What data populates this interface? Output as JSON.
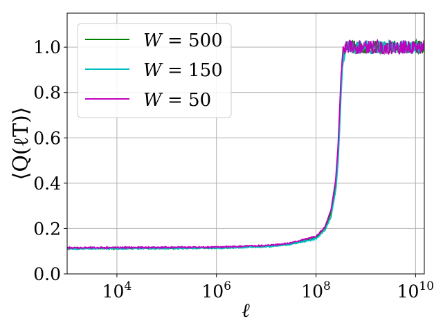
{
  "chart_data": {
    "type": "line",
    "xlabel": "ℓ",
    "ylabel": "⟨Q(ℓT)⟩",
    "xscale": "log",
    "xlim": [
      1000,
      15000000000
    ],
    "ylim": [
      0.0,
      1.15
    ],
    "x_ticks": [
      {
        "exp": 4,
        "base": "10",
        "sup": "4"
      },
      {
        "exp": 6,
        "base": "10",
        "sup": "6"
      },
      {
        "exp": 8,
        "base": "10",
        "sup": "8"
      },
      {
        "exp": 10,
        "base": "10",
        "sup": "10"
      }
    ],
    "y_ticks": [
      {
        "value": 0.0,
        "label": "0.0"
      },
      {
        "value": 0.2,
        "label": "0.2"
      },
      {
        "value": 0.4,
        "label": "0.4"
      },
      {
        "value": 0.6,
        "label": "0.6"
      },
      {
        "value": 0.8,
        "label": "0.8"
      },
      {
        "value": 1.0,
        "label": "1.0"
      }
    ],
    "grid": true,
    "legend_position": "top-left",
    "series": [
      {
        "name": "W = 500",
        "symbol": "W",
        "eq": " = 500",
        "color": "#008000",
        "x": [
          1000,
          10000,
          100000,
          1000000,
          10000000,
          30000000,
          100000000,
          150000000,
          200000000,
          250000000,
          280000000,
          300000000,
          320000000,
          350000000,
          400000000,
          1000000000,
          10000000000,
          15000000000
        ],
        "y": [
          0.112,
          0.113,
          0.114,
          0.115,
          0.122,
          0.132,
          0.16,
          0.2,
          0.27,
          0.4,
          0.55,
          0.7,
          0.85,
          0.97,
          1.0,
          1.0,
          1.0,
          1.0
        ]
      },
      {
        "name": "W = 150",
        "symbol": "W",
        "eq": " = 150",
        "color": "#00bfbf",
        "x": [
          1000,
          10000,
          100000,
          1000000,
          10000000,
          30000000,
          100000000,
          150000000,
          200000000,
          250000000,
          280000000,
          300000000,
          320000000,
          350000000,
          400000000,
          1000000000,
          10000000000,
          15000000000
        ],
        "y": [
          0.111,
          0.112,
          0.113,
          0.114,
          0.12,
          0.13,
          0.155,
          0.19,
          0.25,
          0.37,
          0.5,
          0.65,
          0.8,
          0.95,
          1.0,
          1.0,
          1.0,
          1.0
        ]
      },
      {
        "name": "W = 50",
        "symbol": "W",
        "eq": " = 50",
        "color": "#bf00bf",
        "x": [
          1000,
          10000,
          100000,
          1000000,
          10000000,
          30000000,
          100000000,
          150000000,
          200000000,
          250000000,
          280000000,
          300000000,
          320000000,
          350000000,
          400000000,
          1000000000,
          10000000000,
          15000000000
        ],
        "y": [
          0.115,
          0.116,
          0.117,
          0.118,
          0.125,
          0.136,
          0.165,
          0.205,
          0.28,
          0.42,
          0.58,
          0.74,
          0.88,
          0.98,
          1.0,
          1.0,
          1.0,
          1.0
        ]
      }
    ]
  }
}
